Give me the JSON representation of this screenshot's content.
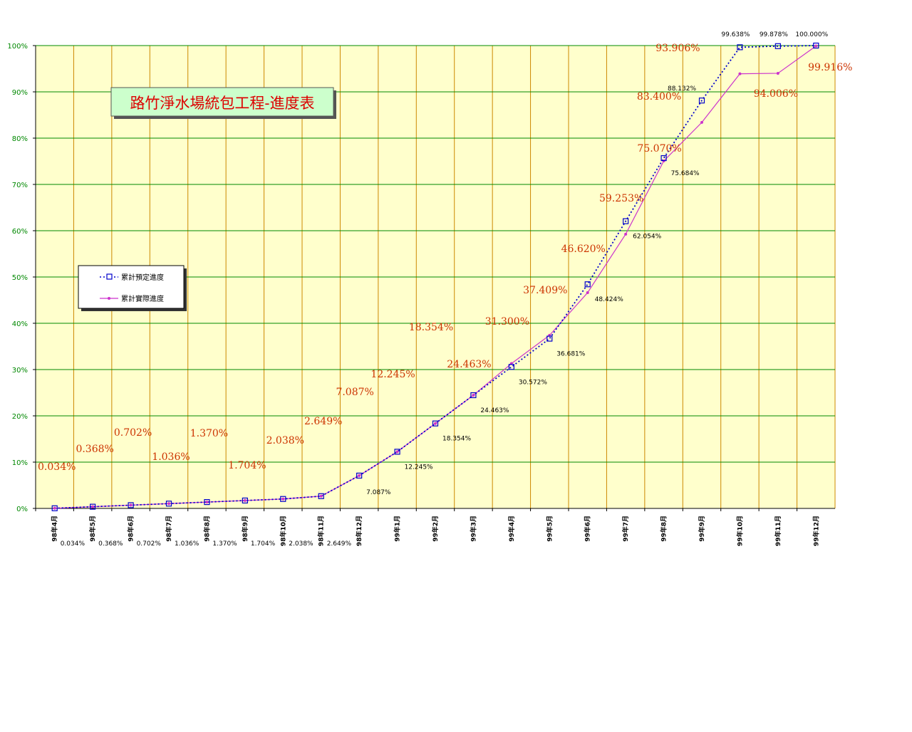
{
  "chart_data": {
    "type": "line",
    "title": "路竹淨水場統包工程-進度表",
    "xlabel": "",
    "ylabel": "",
    "ylim": [
      0,
      100
    ],
    "y_ticks": [
      "0%",
      "10%",
      "20%",
      "30%",
      "40%",
      "50%",
      "60%",
      "70%",
      "80%",
      "90%",
      "100%"
    ],
    "grid": true,
    "legend_position": "left-middle",
    "categories": [
      "98年4月",
      "98年5月",
      "98年6月",
      "98年7月",
      "98年8月",
      "98年9月",
      "98年10月",
      "98年11月",
      "98年12月",
      "99年1月",
      "99年2月",
      "99年3月",
      "99年4月",
      "99年5月",
      "99年6月",
      "99年7月",
      "99年8月",
      "99年9月",
      "99年10月",
      "99年11月",
      "99年12月"
    ],
    "series": [
      {
        "name": "累計預定進度",
        "color": "#0000cc",
        "style": "dotted-square",
        "values": [
          0.034,
          0.368,
          0.702,
          1.036,
          1.37,
          1.704,
          2.038,
          2.649,
          7.087,
          12.245,
          18.354,
          24.463,
          30.572,
          36.681,
          48.424,
          62.054,
          75.684,
          88.132,
          99.638,
          99.878,
          100.0
        ],
        "labels": [
          "0.034%",
          "0.368%",
          "0.702%",
          "1.036%",
          "1.370%",
          "1.704%",
          "2.038%",
          "2.649%",
          "7.087%",
          "12.245%",
          "18.354%",
          "24.463%",
          "30.572%",
          "36.681%",
          "48.424%",
          "62.054%",
          "75.684%",
          "88.132%",
          "99.638%",
          "99.878%",
          "100.000%"
        ]
      },
      {
        "name": "累計實際進度",
        "color": "#cc33cc",
        "style": "solid-diamond",
        "values": [
          0.034,
          0.368,
          0.702,
          1.036,
          1.37,
          1.704,
          2.038,
          2.649,
          7.087,
          12.245,
          18.354,
          24.463,
          31.3,
          37.409,
          46.62,
          59.253,
          75.07,
          83.4,
          93.906,
          94.006,
          99.916
        ],
        "labels": [
          "0.034%",
          "0.368%",
          "0.702%",
          "1.036%",
          "1.370%",
          "1.704%",
          "2.038%",
          "2.649%",
          "7.087%",
          "12.245%",
          "18.354%",
          "24.463%",
          "31.300%",
          "37.409%",
          "46.620%",
          "59.253%",
          "75.070%",
          "83.400%",
          "93.906%",
          "94.006%",
          "99.916%"
        ]
      }
    ]
  },
  "colors": {
    "plot_background": "#ffffcc",
    "vertical_grid": "#cc8800",
    "horizontal_grid": "#008800",
    "axis_text": "#008800",
    "category_text": "#000000",
    "planned_label": "#000000",
    "actual_label": "#cc3300",
    "title_box": "#ccffcc",
    "title_text": "#dd0000"
  }
}
